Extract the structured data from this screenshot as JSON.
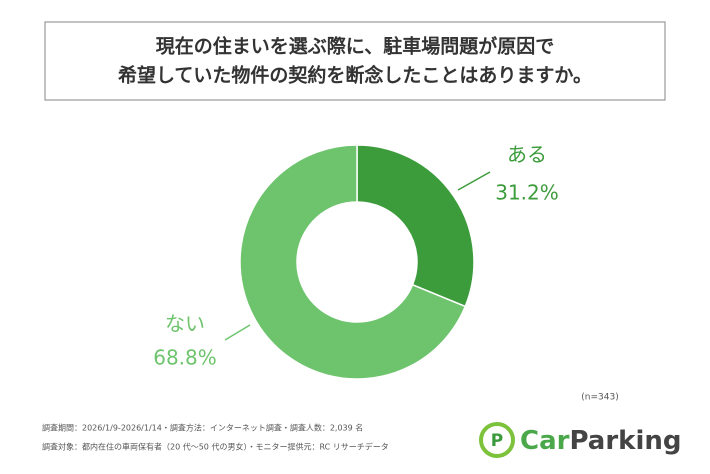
{
  "chart_data": {
    "type": "donut",
    "title": [
      "現在の住まいを選ぶ際に、駐車場問題が原因で",
      "希望していた物件の契約を断念したことはありますか。"
    ],
    "categories": [
      "ある",
      "ない"
    ],
    "values": [
      31.2,
      68.8
    ],
    "value_labels": [
      "31.2%",
      "68.8%"
    ],
    "colors": [
      "#3c9c3c",
      "#6dc46d"
    ],
    "note": "(n=343)"
  },
  "footer": [
    "調査期間：2026/1/9-2026/1/14・調査方法：インターネット調査・調査人数：2,039 名",
    "調査対象：都内在住の車両保有者（20 代～50 代の男女）・モニター提供元：RC リサーチデータ"
  ],
  "logo": {
    "icon": "P",
    "words": [
      "Car",
      "Parking"
    ]
  }
}
